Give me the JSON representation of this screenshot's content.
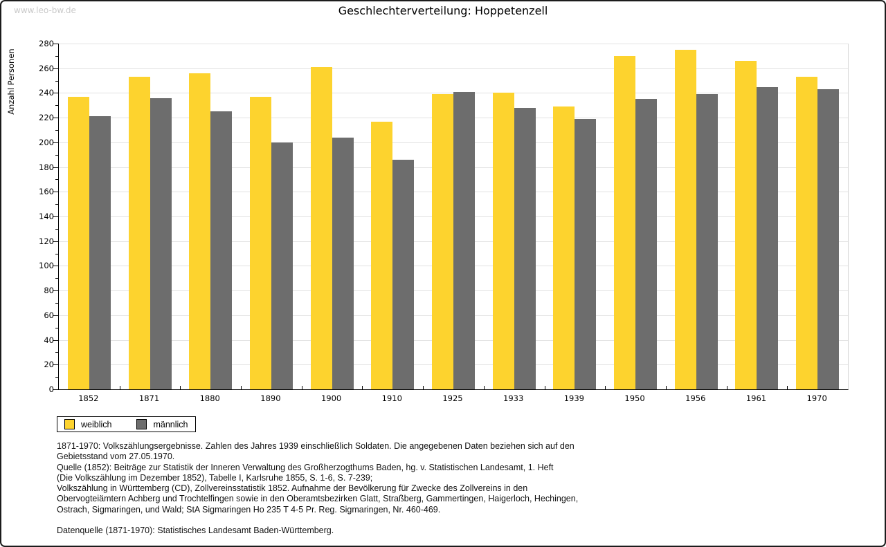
{
  "page": {
    "watermark": "www.leo-bw.de",
    "title": "Geschlechterverteilung: Hoppetenzell"
  },
  "chart_data": {
    "type": "bar",
    "title": "Geschlechterverteilung: Hoppetenzell",
    "xlabel": "",
    "ylabel": "Anzahl Personen",
    "ylim": [
      0,
      280
    ],
    "ytick_major_step": 20,
    "ytick_minor_step": 10,
    "grid": true,
    "legend_position": "bottom-left",
    "categories": [
      "1852",
      "1871",
      "1880",
      "1890",
      "1900",
      "1910",
      "1925",
      "1933",
      "1939",
      "1950",
      "1956",
      "1961",
      "1970"
    ],
    "series": [
      {
        "name": "weiblich",
        "color": "#fdd32e",
        "values": [
          237,
          253,
          256,
          237,
          261,
          217,
          239,
          240,
          229,
          270,
          275,
          266,
          253
        ]
      },
      {
        "name": "männlich",
        "color": "#6d6d6d",
        "values": [
          221,
          236,
          225,
          200,
          204,
          186,
          241,
          228,
          219,
          235,
          239,
          245,
          243
        ]
      }
    ]
  },
  "footnotes": {
    "lines": [
      "1871-1970: Volkszählungsergebnisse. Zahlen des Jahres 1939 einschließlich Soldaten. Die angegebenen Daten beziehen sich auf den",
      "Gebietsstand vom 27.05.1970.",
      "Quelle (1852): Beiträge zur Statistik der Inneren Verwaltung des Großherzogthums Baden, hg. v. Statistischen Landesamt, 1. Heft",
      "(Die Volkszählung im Dezember 1852), Tabelle I, Karlsruhe 1855, S. 1-6, S. 7-239;",
      "Volkszählung in Württemberg (CD), Zollvereinsstatistik 1852. Aufnahme der Bevölkerung für Zwecke des Zollvereins in den",
      "Obervogteiämtern Achberg und Trochtelfingen sowie in den Oberamtsbezirken Glatt, Straßberg, Gammertingen, Haigerloch, Hechingen,",
      "Ostrach, Sigmaringen, und Wald; StA Sigmaringen Ho 235 T 4-5 Pr. Reg. Sigmaringen, Nr. 460-469.",
      "",
      "Datenquelle (1871-1970): Statistisches Landesamt Baden-Württemberg."
    ]
  },
  "colors": {
    "female_bar": "#fdd32e",
    "male_bar": "#6d6d6d",
    "gridline": "#e1e1e1",
    "axis": "#000000",
    "watermark": "#c9c9c9",
    "frame": "#1c1c1c"
  }
}
